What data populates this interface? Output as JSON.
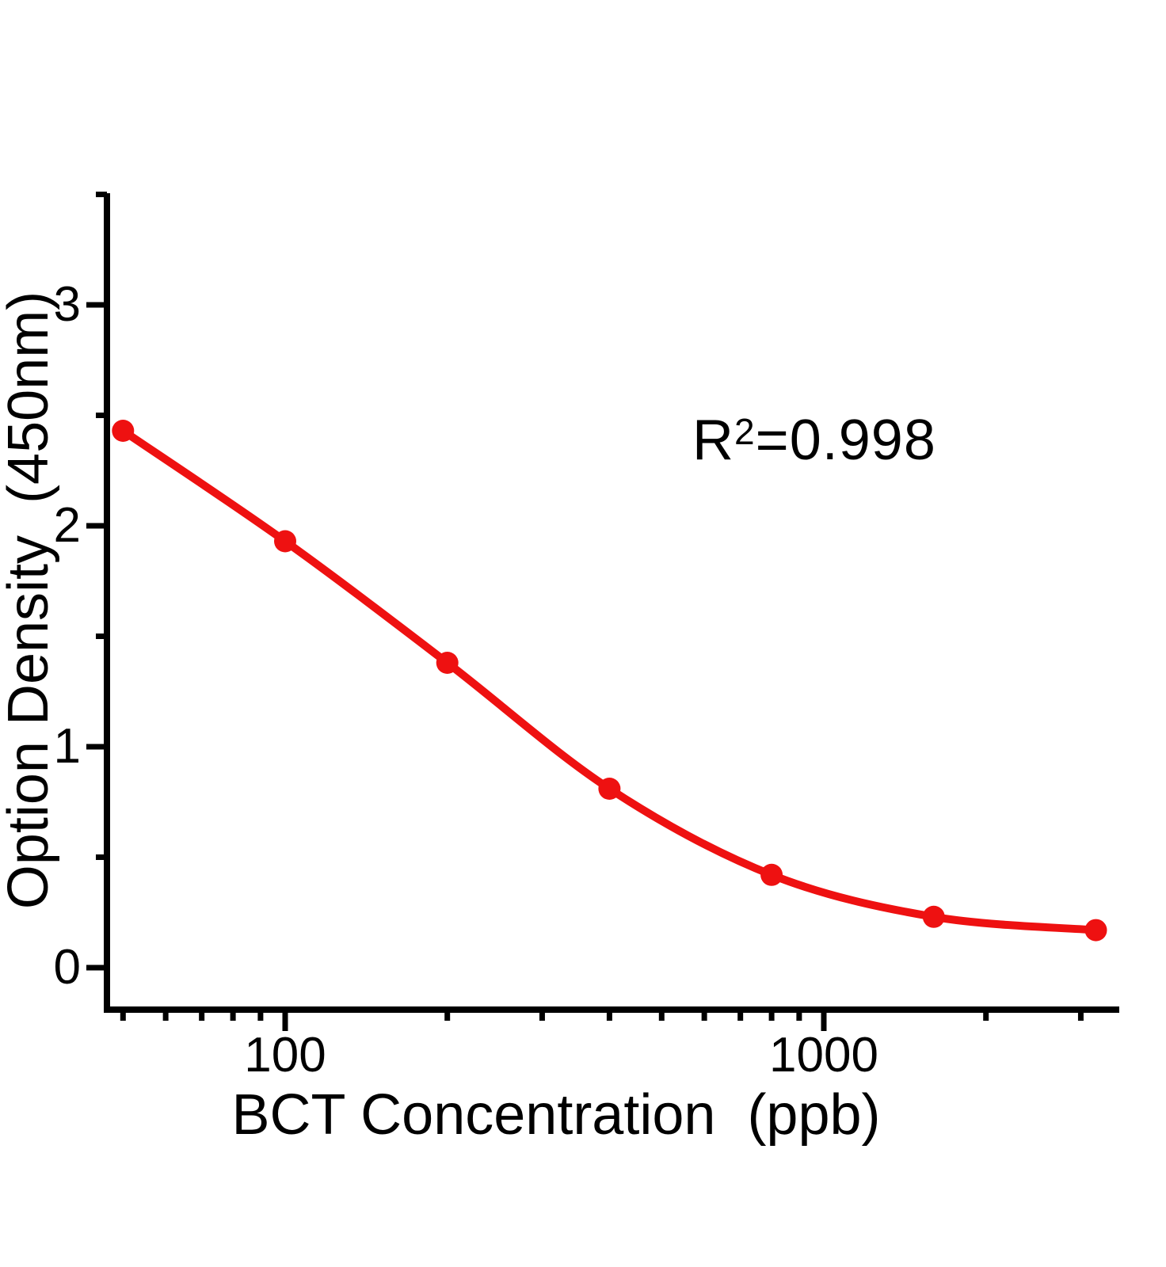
{
  "figure": {
    "background_color": "#ffffff",
    "axis_color": "#000000",
    "series_color": "#ee1111",
    "annotation_parts": {
      "base": "R",
      "sup": "2",
      "rest": "=0.998"
    }
  },
  "chart_data": {
    "type": "scatter",
    "line": "smooth-sigmoid-fit",
    "title": "",
    "xlabel": "BCT Concentration  (ppb)",
    "ylabel": "Option Density  (450nm)",
    "x_scale": "log10",
    "grid": false,
    "legend": "none",
    "marker": "filled-circle",
    "annotation": "R²=0.998",
    "r_squared": 0.998,
    "x": [
      50,
      100,
      200,
      400,
      800,
      1600,
      3200
    ],
    "y": [
      2.43,
      1.93,
      1.38,
      0.81,
      0.42,
      0.23,
      0.17
    ],
    "xlim": [
      46.5,
      3540
    ],
    "ylim": [
      -0.19,
      3.5
    ],
    "x_major_ticks": [
      100,
      1000
    ],
    "x_major_tick_labels": [
      "100",
      "1000"
    ],
    "x_minor_ticks": [
      50,
      60,
      70,
      80,
      90,
      200,
      300,
      400,
      500,
      600,
      700,
      800,
      900,
      2000,
      3000
    ],
    "y_major_ticks": [
      3,
      2,
      1,
      0
    ],
    "y_major_tick_labels": [
      "3",
      "2",
      "1",
      "0"
    ],
    "y_minor_ticks": [
      3.5,
      2.5,
      1.5,
      0.5
    ]
  }
}
